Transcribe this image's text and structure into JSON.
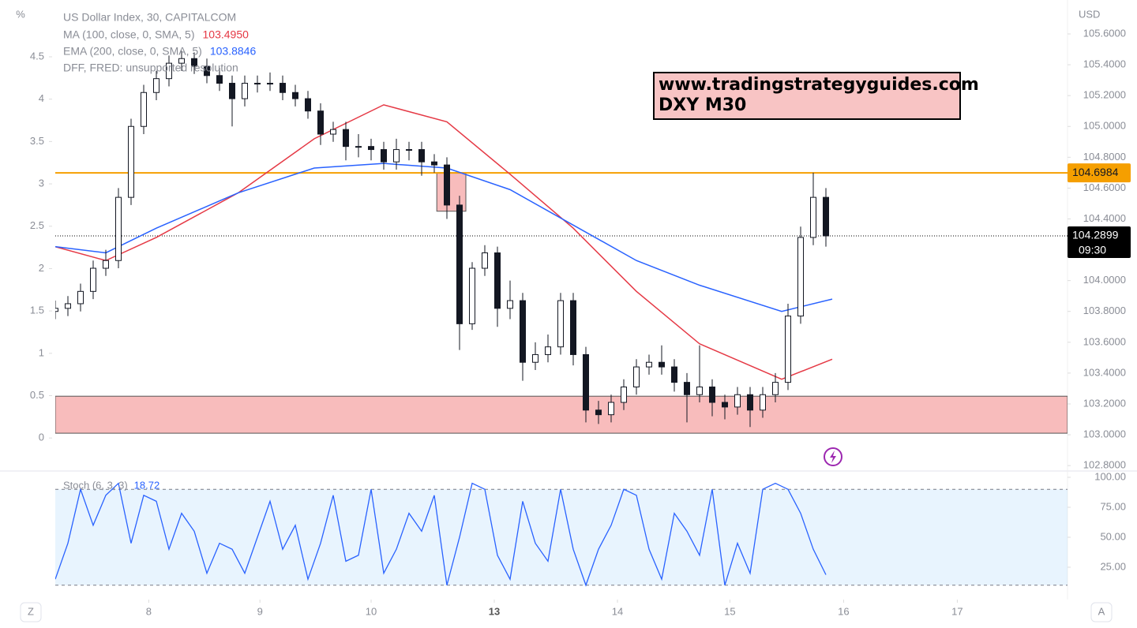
{
  "chart_data": {
    "type": "candlestick",
    "title": "US Dollar Index, 30, CAPITALCOM",
    "y_unit": "USD",
    "y2_unit": "%",
    "grid": false,
    "xlim": [
      0,
      80.125
    ],
    "xticks": [
      {
        "value": 7.4,
        "label": "8"
      },
      {
        "value": 16.2,
        "label": "9"
      },
      {
        "value": 25,
        "label": "10"
      },
      {
        "value": 34.75,
        "label": "13"
      },
      {
        "value": 44.5,
        "label": "14"
      },
      {
        "value": 53.4,
        "label": "15"
      },
      {
        "value": 62.4,
        "label": "16"
      },
      {
        "value": 71.4,
        "label": "17"
      }
    ],
    "ylim": [
      102.77,
      105.6
    ],
    "yticks": [
      {
        "value": 105.6,
        "label": "105.6000"
      },
      {
        "value": 105.4,
        "label": "105.4000"
      },
      {
        "value": 105.2,
        "label": "105.2000"
      },
      {
        "value": 105.0,
        "label": "105.0000"
      },
      {
        "value": 104.8,
        "label": "104.8000"
      },
      {
        "value": 104.6,
        "label": "104.6000"
      },
      {
        "value": 104.4,
        "label": "104.4000"
      },
      {
        "value": 104.0,
        "label": "104.0000"
      },
      {
        "value": 103.8,
        "label": "103.8000"
      },
      {
        "value": 103.6,
        "label": "103.6000"
      },
      {
        "value": 103.4,
        "label": "103.4000"
      },
      {
        "value": 103.2,
        "label": "103.2000"
      },
      {
        "value": 103.0,
        "label": "103.0000"
      },
      {
        "value": 102.8,
        "label": "102.8000"
      }
    ],
    "y2lim": [
      -0.38,
      4.77
    ],
    "y2ticks": [
      0,
      0.5,
      1,
      1.5,
      2,
      2.5,
      3,
      3.5,
      4,
      4.5
    ],
    "candles": [
      [
        103.8,
        103.87,
        103.75,
        103.82
      ],
      [
        103.82,
        103.9,
        103.77,
        103.85
      ],
      [
        103.85,
        103.98,
        103.8,
        103.93
      ],
      [
        103.93,
        104.13,
        103.88,
        104.08
      ],
      [
        104.08,
        104.2,
        104.03,
        104.13
      ],
      [
        104.13,
        104.6,
        104.08,
        104.54
      ],
      [
        104.54,
        105.05,
        104.49,
        105.0
      ],
      [
        105.0,
        105.27,
        104.95,
        105.22
      ],
      [
        105.22,
        105.36,
        105.17,
        105.31
      ],
      [
        105.31,
        105.46,
        105.26,
        105.41
      ],
      [
        105.41,
        105.49,
        105.36,
        105.44
      ],
      [
        105.44,
        105.48,
        105.34,
        105.39
      ],
      [
        105.39,
        105.44,
        105.28,
        105.33
      ],
      [
        105.33,
        105.38,
        105.23,
        105.28
      ],
      [
        105.28,
        105.33,
        105.0,
        105.18
      ],
      [
        105.18,
        105.33,
        105.13,
        105.28
      ],
      [
        105.28,
        105.33,
        105.22,
        105.28
      ],
      [
        105.28,
        105.35,
        105.23,
        105.28
      ],
      [
        105.28,
        105.33,
        105.17,
        105.22
      ],
      [
        105.22,
        105.27,
        105.13,
        105.18
      ],
      [
        105.18,
        105.23,
        105.05,
        105.1
      ],
      [
        105.1,
        105.15,
        104.88,
        104.95
      ],
      [
        104.95,
        105.03,
        104.9,
        104.98
      ],
      [
        104.98,
        105.03,
        104.78,
        104.87
      ],
      [
        104.87,
        104.95,
        104.8,
        104.87
      ],
      [
        104.87,
        104.92,
        104.78,
        104.85
      ],
      [
        104.85,
        104.9,
        104.72,
        104.77
      ],
      [
        104.77,
        104.92,
        104.72,
        104.85
      ],
      [
        104.85,
        104.9,
        104.78,
        104.85
      ],
      [
        104.85,
        104.9,
        104.68,
        104.77
      ],
      [
        104.77,
        104.82,
        104.7,
        104.75
      ],
      [
        104.75,
        104.8,
        104.4,
        104.49
      ],
      [
        104.49,
        104.55,
        103.55,
        103.72
      ],
      [
        103.72,
        104.12,
        103.68,
        104.08
      ],
      [
        104.08,
        104.23,
        104.03,
        104.18
      ],
      [
        104.18,
        104.22,
        103.7,
        103.82
      ],
      [
        103.82,
        104.0,
        103.75,
        103.87
      ],
      [
        103.87,
        103.92,
        103.35,
        103.47
      ],
      [
        103.47,
        103.6,
        103.42,
        103.52
      ],
      [
        103.52,
        103.65,
        103.47,
        103.57
      ],
      [
        103.57,
        103.92,
        103.52,
        103.87
      ],
      [
        103.87,
        103.92,
        103.45,
        103.52
      ],
      [
        103.52,
        103.57,
        103.08,
        103.16
      ],
      [
        103.16,
        103.22,
        103.07,
        103.13
      ],
      [
        103.13,
        103.26,
        103.08,
        103.21
      ],
      [
        103.21,
        103.36,
        103.16,
        103.31
      ],
      [
        103.31,
        103.49,
        103.26,
        103.44
      ],
      [
        103.44,
        103.52,
        103.39,
        103.47
      ],
      [
        103.47,
        103.58,
        103.39,
        103.44
      ],
      [
        103.44,
        103.49,
        103.28,
        103.34
      ],
      [
        103.34,
        103.4,
        103.08,
        103.26
      ],
      [
        103.26,
        103.58,
        103.21,
        103.31
      ],
      [
        103.31,
        103.36,
        103.12,
        103.21
      ],
      [
        103.21,
        103.26,
        103.1,
        103.18
      ],
      [
        103.18,
        103.31,
        103.13,
        103.26
      ],
      [
        103.26,
        103.31,
        103.05,
        103.16
      ],
      [
        103.16,
        103.31,
        103.11,
        103.26
      ],
      [
        103.26,
        103.4,
        103.21,
        103.34
      ],
      [
        103.34,
        103.85,
        103.29,
        103.77
      ],
      [
        103.77,
        104.35,
        103.72,
        104.28
      ],
      [
        104.28,
        104.7,
        104.23,
        104.54
      ],
      [
        104.54,
        104.6,
        104.22,
        104.29
      ]
    ],
    "overlays": [
      {
        "name": "MA (100, close, 0, SMA, 5)",
        "legend_value": {
          "value": 103.495,
          "label": "103.4950"
        },
        "color": "#e53945",
        "x": [
          0,
          4,
          8,
          14.5,
          20.5,
          26,
          31,
          36,
          41,
          46,
          51,
          57.5,
          61.5
        ],
        "values": [
          104.22,
          104.13,
          104.28,
          104.57,
          104.92,
          105.14,
          105.03,
          104.69,
          104.34,
          103.93,
          103.59,
          103.36,
          103.49
        ]
      },
      {
        "name": "EMA (200, close, 0, SMA, 5)",
        "legend_value": {
          "value": 103.8846,
          "label": "103.8846"
        },
        "color": "#2962ff",
        "x": [
          0,
          4,
          8,
          14.5,
          20.5,
          26,
          31,
          36,
          41,
          46,
          51,
          57.5,
          61.5
        ],
        "values": [
          104.22,
          104.18,
          104.34,
          104.57,
          104.73,
          104.76,
          104.73,
          104.59,
          104.36,
          104.13,
          103.97,
          103.8,
          103.88
        ]
      }
    ],
    "note": "DFF, FRED: unsupported resolution",
    "levels": [
      {
        "value": 104.6984,
        "color": "#f59f00"
      },
      {
        "value": 104.2899,
        "color": "#000000",
        "time": "09:30"
      }
    ],
    "zones": [
      {
        "low": 103.01,
        "high": 103.25,
        "x0": 0,
        "x1": 80.125
      },
      {
        "low": 104.45,
        "high": 104.7,
        "x0": 30.2,
        "x1": 32.5
      }
    ],
    "annotation": [
      "www.tradingstrategyguides.com",
      "DXY M30"
    ],
    "stochastic": {
      "name": "Stoch (6, 3, 3)",
      "last": 18.72,
      "color": "#2962ff",
      "ylim": [
        -2,
        104.6
      ],
      "yticks": [
        {
          "value": 100,
          "label": "100.00"
        },
        {
          "value": 75,
          "label": "75.00"
        },
        {
          "value": 50,
          "label": "50.00"
        },
        {
          "value": 25,
          "label": "25.00"
        }
      ],
      "bands": [
        10,
        90
      ],
      "values": [
        15,
        45,
        90,
        60,
        85,
        95,
        45,
        85,
        80,
        40,
        70,
        55,
        20,
        45,
        40,
        20,
        50,
        80,
        40,
        60,
        15,
        45,
        85,
        30,
        35,
        90,
        20,
        40,
        70,
        55,
        85,
        10,
        50,
        95,
        90,
        35,
        15,
        80,
        45,
        30,
        90,
        40,
        10,
        40,
        60,
        90,
        85,
        40,
        15,
        70,
        55,
        35,
        90,
        10,
        45,
        20,
        90,
        95,
        90,
        70,
        40,
        18.72
      ]
    },
    "controls": [
      "Z",
      "A"
    ]
  }
}
